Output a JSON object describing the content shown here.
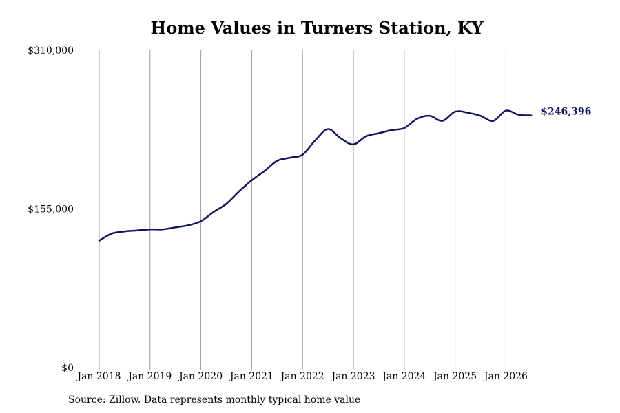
{
  "chart_data": {
    "type": "line",
    "title": "Home Values in Turners Station, KY",
    "xlabel": "",
    "ylabel": "",
    "ylim": [
      0,
      310000
    ],
    "y_ticks": [
      {
        "value": 0,
        "label": "$0"
      },
      {
        "value": 155000,
        "label": "$155,000"
      },
      {
        "value": 310000,
        "label": "$310,000"
      }
    ],
    "x_ticks": [
      {
        "year": 2018,
        "label": "Jan 2018"
      },
      {
        "year": 2019,
        "label": "Jan 2019"
      },
      {
        "year": 2020,
        "label": "Jan 2020"
      },
      {
        "year": 2021,
        "label": "Jan 2021"
      },
      {
        "year": 2022,
        "label": "Jan 2022"
      },
      {
        "year": 2023,
        "label": "Jan 2023"
      },
      {
        "year": 2024,
        "label": "Jan 2024"
      },
      {
        "year": 2025,
        "label": "Jan 2025"
      },
      {
        "year": 2026,
        "label": "Jan 2026"
      }
    ],
    "grid": "vertical",
    "line_color": "#12125e",
    "end_label": "$246,396",
    "series": [
      {
        "x": [
          "2018-01",
          "2018-04",
          "2018-07",
          "2018-10",
          "2019-01",
          "2019-04",
          "2019-07",
          "2019-10",
          "2020-01",
          "2020-04",
          "2020-07",
          "2020-10",
          "2021-01",
          "2021-04",
          "2021-07",
          "2021-10",
          "2022-01",
          "2022-04",
          "2022-07",
          "2022-10",
          "2023-01",
          "2023-04",
          "2023-07",
          "2023-10",
          "2024-01",
          "2024-04",
          "2024-07",
          "2024-10",
          "2025-01",
          "2025-04",
          "2025-07",
          "2025-10",
          "2026-01",
          "2026-04",
          "2026-07"
        ],
        "values": [
          124000,
          131000,
          133000,
          134000,
          135000,
          135000,
          137000,
          139000,
          143000,
          152000,
          160000,
          172000,
          183000,
          192000,
          202000,
          205000,
          208000,
          222000,
          233000,
          224000,
          218000,
          226000,
          229000,
          232000,
          234000,
          243000,
          246000,
          241000,
          250000,
          249000,
          246000,
          241000,
          251000,
          247000,
          246396
        ]
      }
    ]
  },
  "source_note": "Source: Zillow. Data represents monthly typical home value"
}
